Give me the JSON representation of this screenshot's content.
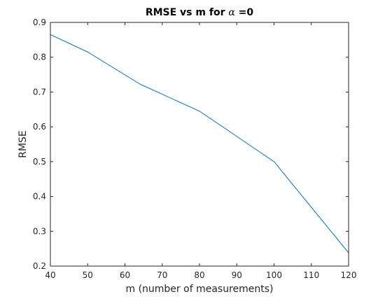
{
  "chart_data": {
    "type": "line",
    "title": {
      "prefix": "RMSE vs m for ",
      "symbol": "α",
      "suffix": " =0"
    },
    "xlabel": "m (number of measurements)",
    "ylabel": "RMSE",
    "xlim": [
      40,
      120
    ],
    "ylim": [
      0.2,
      0.9
    ],
    "xticks": [
      40,
      50,
      60,
      70,
      80,
      90,
      100,
      110,
      120
    ],
    "xtick_labels": [
      "40",
      "50",
      "60",
      "70",
      "80",
      "90",
      "100",
      "110",
      "120"
    ],
    "yticks": [
      0.2,
      0.3,
      0.4,
      0.5,
      0.6,
      0.7,
      0.8,
      0.9
    ],
    "ytick_labels": [
      "0.2",
      "0.3",
      "0.4",
      "0.5",
      "0.6",
      "0.7",
      "0.8",
      "0.9"
    ],
    "grid": false,
    "box": true,
    "series": [
      {
        "color": "#0072BD",
        "x": [
          40,
          50,
          64,
          80,
          100,
          120
        ],
        "y": [
          0.865,
          0.815,
          0.723,
          0.645,
          0.5,
          0.238
        ]
      }
    ]
  }
}
